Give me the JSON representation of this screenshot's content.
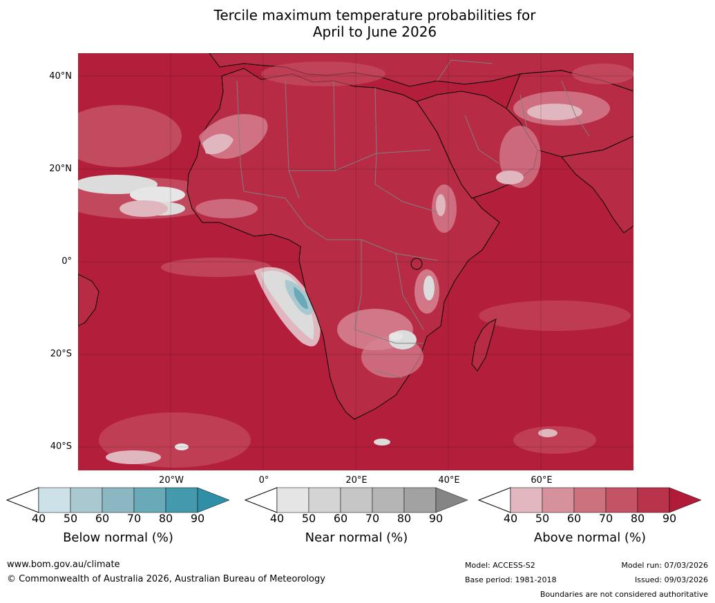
{
  "title": {
    "line1": "Tercile maximum temperature probabilities for",
    "line2": "April to June 2026"
  },
  "map": {
    "lat_labels": [
      "40°N",
      "20°N",
      "0°",
      "20°S",
      "40°S"
    ],
    "lon_labels": [
      "20°W",
      "0°",
      "20°E",
      "40°E",
      "60°E"
    ],
    "colors": {
      "ocean_above": "#b31e3b",
      "land_above": "#b72b44",
      "above_70": "#c65366",
      "above_60": "#d68594",
      "above_50": "#e0b6bf",
      "near_normal": "#dcdcdc",
      "below_normal": "#7fb3c0",
      "coast": "#000000",
      "border": "#808080"
    }
  },
  "legends": [
    {
      "name": "Below normal (%)",
      "ticks": [
        "40",
        "50",
        "60",
        "70",
        "80",
        "90"
      ],
      "colors": [
        "#cde2e8",
        "#a9c8cf",
        "#8bb7c2",
        "#6aaab8",
        "#4499ad",
        "#2e8fa7"
      ]
    },
    {
      "name": "Near normal (%)",
      "ticks": [
        "40",
        "50",
        "60",
        "70",
        "80",
        "90"
      ],
      "colors": [
        "#e5e5e5",
        "#d4d4d4",
        "#c6c6c6",
        "#b5b5b5",
        "#a2a2a2",
        "#858585"
      ]
    },
    {
      "name": "Above normal (%)",
      "ticks": [
        "40",
        "50",
        "60",
        "70",
        "80",
        "90"
      ],
      "colors": [
        "#e2b7bf",
        "#d6929c",
        "#cc727e",
        "#c45465",
        "#b9344b",
        "#b11b38"
      ]
    }
  ],
  "footer": {
    "url": "www.bom.gov.au/climate",
    "copyright": "© Commonwealth of Australia 2026, Australian Bureau of Meteorology",
    "model": "Model: ACCESS-S2",
    "base_period": "Base period: 1981-2018",
    "model_run": "Model run: 07/03/2026",
    "issued": "Issued: 09/03/2026",
    "boundaries": "Boundaries are not considered authoritative"
  }
}
